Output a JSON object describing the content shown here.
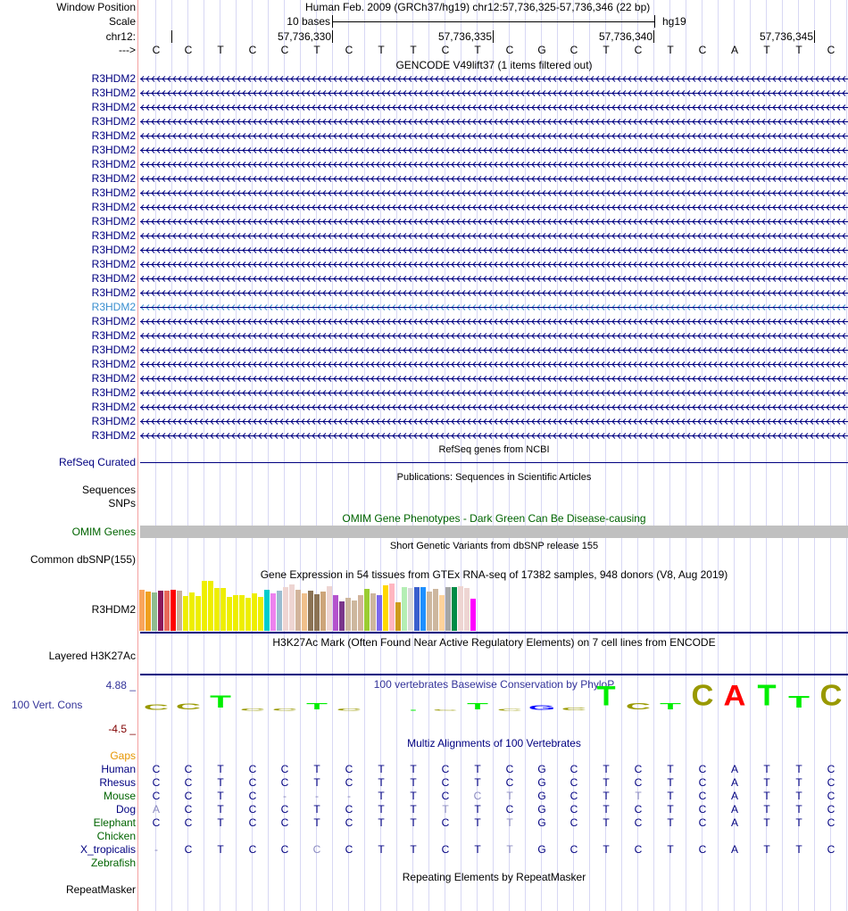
{
  "header": {
    "window_position_label": "Window Position",
    "assembly_position": "Human Feb. 2009 (GRCh37/hg19)   chr12:57,736,325-57,736,346 (22 bp)",
    "scale_label": "Scale",
    "scale_text": "10 bases",
    "scale_db": "hg19",
    "chrom_label": "chr12:",
    "ticks": [
      "57,736,330",
      "57,736,335",
      "57,736,340",
      "57,736,345"
    ],
    "strand_label": "--->",
    "bases": [
      "C",
      "C",
      "T",
      "C",
      "C",
      "T",
      "C",
      "T",
      "T",
      "C",
      "T",
      "C",
      "G",
      "C",
      "T",
      "C",
      "T",
      "C",
      "A",
      "T",
      "T",
      "C"
    ]
  },
  "gencode": {
    "title": "GENCODE V49lift37 (1 items filtered out)",
    "rows": [
      "R3HDM2",
      "R3HDM2",
      "R3HDM2",
      "R3HDM2",
      "R3HDM2",
      "R3HDM2",
      "R3HDM2",
      "R3HDM2",
      "R3HDM2",
      "R3HDM2",
      "R3HDM2",
      "R3HDM2",
      "R3HDM2",
      "R3HDM2",
      "R3HDM2",
      "R3HDM2",
      "R3HDM2",
      "R3HDM2",
      "R3HDM2",
      "R3HDM2",
      "R3HDM2",
      "R3HDM2",
      "R3HDM2",
      "R3HDM2",
      "R3HDM2",
      "R3HDM2"
    ],
    "highlighted_row": 16
  },
  "refseq": {
    "title": "RefSeq genes from NCBI",
    "label": "RefSeq Curated"
  },
  "publications": {
    "title": "Publications: Sequences in Scientific Articles",
    "label1": "Sequences",
    "label2": "SNPs"
  },
  "omim": {
    "title": "OMIM Gene Phenotypes - Dark Green Can Be Disease-causing",
    "label": "OMIM Genes"
  },
  "dbsnp": {
    "title": "Short Genetic Variants from dbSNP release 155",
    "label": "Common dbSNP(155)"
  },
  "gtex": {
    "title": "Gene Expression in 54 tissues from GTEx RNA-seq of 17382 samples, 948 donors (V8, Aug 2019)",
    "label": "R3HDM2",
    "values": [
      134,
      128,
      126,
      131,
      131,
      134,
      131,
      113,
      125,
      113,
      164,
      164,
      140,
      140,
      110,
      116,
      116,
      107,
      122,
      110,
      134,
      122,
      131,
      143,
      152,
      134,
      122,
      131,
      119,
      128,
      146,
      116,
      98,
      107,
      101,
      116,
      137,
      122,
      116,
      149,
      155,
      95,
      143,
      140,
      143,
      143,
      128,
      137,
      116,
      143,
      143,
      146,
      140,
      104
    ],
    "colors": [
      "#f9a55c",
      "#f0a020",
      "#8fbc8f",
      "#8b1a5c",
      "#e8695a",
      "#ff0000",
      "#c8b09c",
      "#eeee00",
      "#eeee00",
      "#eeee00",
      "#eeee00",
      "#eeee00",
      "#eeee00",
      "#eeee00",
      "#eeee00",
      "#eeee00",
      "#eeee00",
      "#eeee00",
      "#eeee00",
      "#eeee00",
      "#00cdcd",
      "#ee82ee",
      "#9abcd0",
      "#eed5d2",
      "#eed5d2",
      "#d2b49c",
      "#f0c08c",
      "#8b7355",
      "#8b7355",
      "#cda57a",
      "#eed5d2",
      "#b452cd",
      "#7a378b",
      "#cdb79e",
      "#cdb79e",
      "#d2b49c",
      "#9acd32",
      "#cdb79e",
      "#7b68ee",
      "#ffd700",
      "#ffb6c1",
      "#cd9b1d",
      "#b4eeb4",
      "#d9d9d9",
      "#3a5fcd",
      "#1e90ff",
      "#cdb79e",
      "#cdb79e",
      "#ffd39b",
      "#a6a6a6",
      "#008b45",
      "#eed5d2",
      "#eed5d2",
      "#ff00ff"
    ]
  },
  "h3k27ac": {
    "title": "H3K27Ac Mark (Often Found Near Active Regulatory Elements) on 7 cell lines from ENCODE",
    "label": "Layered H3K27Ac"
  },
  "conservation": {
    "title": "100 vertebrates Basewise Conservation by PhyloP",
    "label": "100 Vert. Cons",
    "max_label": "4.88 _",
    "min_label": "-4.5 _",
    "range": [
      -4.5,
      4.88
    ],
    "scores": [
      1.2,
      1.3,
      2.8,
      0.5,
      0.5,
      1.4,
      0.5,
      0.0,
      0.2,
      0.3,
      1.4,
      0.4,
      1.1,
      0.6,
      4.5,
      1.5,
      1.4,
      4.8,
      4.6,
      4.8,
      2.7,
      4.8
    ],
    "base_colors": {
      "A": "#ff0000",
      "C": "#999900",
      "G": "#0000ff",
      "T": "#00ee00"
    }
  },
  "multiz": {
    "title": "Multiz Alignments of 100 Vertebrates",
    "gaps_label": "Gaps",
    "species": [
      {
        "name": "Human",
        "color": "#000080",
        "seq": "CCTCCTCTTCTCGCTCTCATTC",
        "faint": ""
      },
      {
        "name": "Rhesus",
        "color": "#000080",
        "seq": "CCTCCTCTTCTCGCTCTCATTC",
        "faint": ""
      },
      {
        "name": "Mouse",
        "color": "#006400",
        "seq": "CCTC---TTCCTGCTTTCATTC",
        "faint": "0000111000110001000000"
      },
      {
        "name": "Dog",
        "color": "#000080",
        "seq": "ACTCCTCTTTTCGCTCTCATTC",
        "faint": "1000000001000000000000"
      },
      {
        "name": "Elephant",
        "color": "#006400",
        "seq": "CCTCCTCTTCTTGCTCTCATTC",
        "faint": "0000000000010000000000"
      },
      {
        "name": "Chicken",
        "color": "#006400",
        "seq": "",
        "faint": ""
      },
      {
        "name": "X_tropicalis",
        "color": "#000080",
        "seq": "-CTCCCCTTCTTGCTCTCATTC",
        "faint": "1000010000010000000000"
      },
      {
        "name": "Zebrafish",
        "color": "#006400",
        "seq": "",
        "faint": ""
      }
    ]
  },
  "repeatmasker": {
    "title": "Repeating Elements by RepeatMasker",
    "label": "RepeatMasker"
  }
}
